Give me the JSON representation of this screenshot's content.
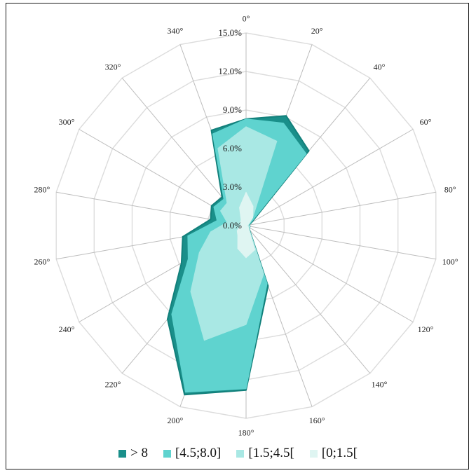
{
  "chart_data": {
    "type": "radar",
    "directions_deg": [
      0,
      20,
      40,
      60,
      80,
      100,
      120,
      140,
      160,
      180,
      200,
      220,
      240,
      260,
      280,
      300,
      320,
      340
    ],
    "direction_labels": [
      "0°",
      "20°",
      "40°",
      "60°",
      "80°",
      "100°",
      "120°",
      "140°",
      "160°",
      "180°",
      "200°",
      "220°",
      "240°",
      "260°",
      "280°",
      "300°",
      "320°",
      "340°"
    ],
    "rlim": [
      0,
      15
    ],
    "radial_ticks": [
      0,
      3,
      6,
      9,
      12,
      15
    ],
    "radial_tick_labels": [
      "0.0%",
      "3.0%",
      "6.0%",
      "9.0%",
      "12.0%",
      "15.0%"
    ],
    "series": [
      {
        "name": "> 8",
        "color": "#1a8f8a",
        "values": [
          8.3,
          9.1,
          7.6,
          0.5,
          0.2,
          0.3,
          0.3,
          0.4,
          5.0,
          12.8,
          14.0,
          9.5,
          5.8,
          5.0,
          2.8,
          3.1,
          2.9,
          7.9
        ]
      },
      {
        "name": "[4.5;8.0]",
        "color": "#5fd3cf",
        "values": [
          8.3,
          8.5,
          7.3,
          0.4,
          0.2,
          0.3,
          0.3,
          0.4,
          4.8,
          12.7,
          13.8,
          9.0,
          5.2,
          4.6,
          2.3,
          2.9,
          2.7,
          7.6
        ]
      },
      {
        "name": "[1.5;4.5[",
        "color": "#a9e8e4",
        "values": [
          7.7,
          7.0,
          0.8,
          0.3,
          0.2,
          0.3,
          0.3,
          0.4,
          4.0,
          7.7,
          9.5,
          6.7,
          4.2,
          2.8,
          1.5,
          2.3,
          2.3,
          6.4
        ]
      },
      {
        "name": "[0;1.5[",
        "color": "#dff5f2",
        "values": [
          2.6,
          1.6,
          0.8,
          0.2,
          0.1,
          0.1,
          0.2,
          0.3,
          2.0,
          2.5,
          1.9,
          1.0,
          0.8,
          0.5,
          0.4,
          0.5,
          0.6,
          1.5
        ]
      }
    ],
    "grid": true,
    "legend_position": "bottom"
  }
}
